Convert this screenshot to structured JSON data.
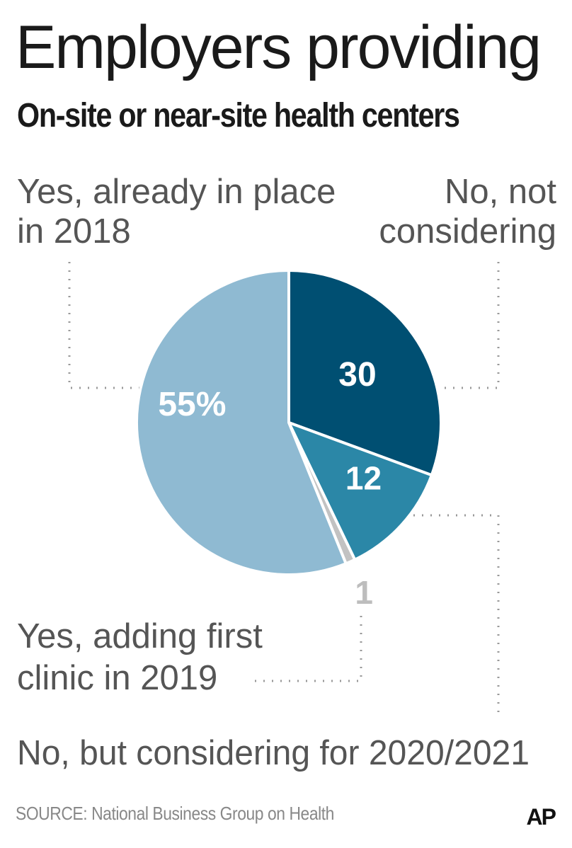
{
  "header": {
    "title": "Employers providing",
    "subtitle": "On-site or near-site health centers"
  },
  "chart_data": {
    "type": "pie",
    "title": "Employers providing",
    "subtitle": "On-site or near-site health centers",
    "slices": [
      {
        "label": "No, not considering",
        "value": 30,
        "display": "30",
        "color": "#004f72"
      },
      {
        "label": "No, but considering for 2020/2021",
        "value": 12,
        "display": "12",
        "color": "#2b87a7"
      },
      {
        "label": "Yes, adding first clinic in 2019",
        "value": 1,
        "display": "1",
        "color": "#c2c2c2"
      },
      {
        "label": "Yes, already in place in 2018",
        "value": 55,
        "display": "55%",
        "color": "#8fbad2"
      }
    ],
    "legend_labels": {
      "already": [
        "Yes, already in place",
        "in 2018"
      ],
      "not_considering": [
        "No, not",
        "considering"
      ],
      "adding": [
        "Yes, adding first",
        "clinic in 2019"
      ],
      "considering": "No, but considering for 2020/2021"
    }
  },
  "footer": {
    "source": "SOURCE: National Business  Group on Health",
    "logo": "AP"
  }
}
